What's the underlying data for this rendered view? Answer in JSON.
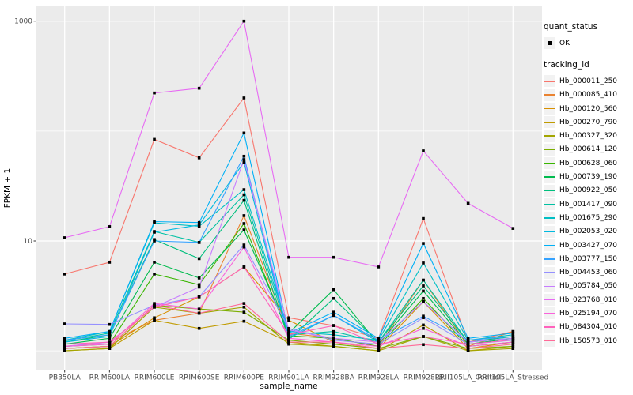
{
  "figure_colors": {
    "panel_background": "#EBEBEB",
    "gridline": "#FFFFFF",
    "axis_text": "#4D4D4D",
    "tick_mark": "#333333",
    "legend_key_background": "#F2F2F2",
    "point_marker": "#000000"
  },
  "legend": {
    "shape_title": "quant_status",
    "shape_items": [
      {
        "label": "OK",
        "marker": "black-square"
      }
    ],
    "color_title": "tracking_id"
  },
  "chart_data": {
    "type": "line",
    "title": "",
    "x_axis": {
      "label": "sample_name",
      "categories": [
        "PB350LA",
        "RRIM600LA",
        "RRIM600LE",
        "RRIM600SE",
        "RRIM600PE",
        "RRIM901LA",
        "RRIM928BA",
        "RRIM928LA",
        "RRIM928LE",
        "RRII105LA_Control",
        "RRII105LA_Stressed"
      ]
    },
    "y_axis": {
      "label": "FPKM + 1",
      "scale": "log10",
      "tick_labels": [
        "1000",
        "10"
      ],
      "tick_values": [
        1000,
        10
      ],
      "minor_gridline_values": [
        100,
        1
      ],
      "range": [
        0.95,
        1150
      ],
      "grid": true
    },
    "legend_position": "right",
    "point_marker": {
      "legend_title": "quant_status",
      "status": "OK",
      "shape": "filled-square",
      "color": "#000000"
    },
    "series": [
      {
        "name": "Hb_000011_250",
        "color": "#F8766D",
        "values": [
          5.0,
          6.4,
          84,
          57,
          200,
          2.0,
          1.7,
          1.3,
          16,
          1.2,
          1.5
        ]
      },
      {
        "name": "Hb_000085_410",
        "color": "#EA8331",
        "values": [
          1.1,
          1.2,
          1.9,
          2.2,
          17,
          1.45,
          1.3,
          1.1,
          4.4,
          1.1,
          1.5
        ]
      },
      {
        "name": "Hb_000120_560",
        "color": "#D89000",
        "values": [
          1.05,
          1.1,
          2.0,
          3.1,
          5.8,
          1.9,
          1.2,
          1.05,
          2.8,
          1.05,
          1.2
        ]
      },
      {
        "name": "Hb_000270_790",
        "color": "#C09B00",
        "values": [
          1.0,
          1.05,
          1.9,
          1.6,
          1.86,
          1.2,
          1.1,
          1.0,
          1.72,
          1.0,
          1.1
        ]
      },
      {
        "name": "Hb_000327_320",
        "color": "#A3A500",
        "values": [
          1.0,
          1.05,
          2.5,
          2.2,
          2.5,
          1.15,
          1.1,
          1.0,
          1.35,
          1.0,
          1.05
        ]
      },
      {
        "name": "Hb_000614_120",
        "color": "#7CAE00",
        "values": [
          1.05,
          1.1,
          2.6,
          2.4,
          2.25,
          1.25,
          1.15,
          1.05,
          1.35,
          1.05,
          1.1
        ]
      },
      {
        "name": "Hb_000628_060",
        "color": "#39B600",
        "values": [
          1.1,
          1.15,
          5.0,
          4.0,
          14.4,
          1.37,
          1.3,
          1.1,
          3.0,
          1.1,
          1.2
        ]
      },
      {
        "name": "Hb_000739_190",
        "color": "#00BB4E",
        "values": [
          1.15,
          1.3,
          6.4,
          4.6,
          12.6,
          1.45,
          3.6,
          1.15,
          3.5,
          1.15,
          1.3
        ]
      },
      {
        "name": "Hb_000922_050",
        "color": "#00BF7D",
        "values": [
          1.2,
          1.4,
          10.3,
          6.9,
          23.4,
          1.26,
          3.0,
          1.2,
          3.9,
          1.2,
          1.35
        ]
      },
      {
        "name": "Hb_001417_090",
        "color": "#00C1A3",
        "values": [
          1.23,
          1.45,
          12.2,
          9.7,
          26.3,
          1.4,
          1.5,
          1.2,
          4.4,
          1.2,
          1.3
        ]
      },
      {
        "name": "Hb_001675_290",
        "color": "#00BFC4",
        "values": [
          1.25,
          1.5,
          14.6,
          13.6,
          29.3,
          1.5,
          1.4,
          1.25,
          6.3,
          1.25,
          1.4
        ]
      },
      {
        "name": "Hb_002053_020",
        "color": "#00BAE0",
        "values": [
          1.2,
          1.35,
          12.0,
          14.0,
          52,
          1.3,
          2.1,
          1.2,
          2.8,
          1.2,
          1.3
        ]
      },
      {
        "name": "Hb_003427_070",
        "color": "#00B0F6",
        "values": [
          1.3,
          1.5,
          15.0,
          14.7,
          96,
          1.45,
          2.25,
          1.3,
          9.5,
          1.3,
          1.45
        ]
      },
      {
        "name": "Hb_003777_150",
        "color": "#35A2FF",
        "values": [
          1.25,
          1.4,
          10.0,
          9.7,
          59,
          1.35,
          2.1,
          1.25,
          2.07,
          1.25,
          1.35
        ]
      },
      {
        "name": "Hb_004453_060",
        "color": "#9590FF",
        "values": [
          1.76,
          1.74,
          2.6,
          3.1,
          9.2,
          1.6,
          1.25,
          1.15,
          2.0,
          1.15,
          1.25
        ]
      },
      {
        "name": "Hb_005784_050",
        "color": "#C77CFF",
        "values": [
          1.1,
          1.2,
          2.5,
          3.8,
          55,
          1.55,
          1.3,
          1.2,
          2.8,
          1.2,
          1.3
        ]
      },
      {
        "name": "Hb_023768_010",
        "color": "#E76BF3",
        "values": [
          10.7,
          13.5,
          222,
          245,
          1000,
          7.1,
          7.1,
          5.8,
          66,
          22,
          13
        ]
      },
      {
        "name": "Hb_025194_070",
        "color": "#FA62DB",
        "values": [
          1.1,
          1.15,
          2.7,
          2.4,
          8.8,
          1.3,
          1.2,
          1.1,
          1.6,
          1.1,
          1.2
        ]
      },
      {
        "name": "Hb_084304_010",
        "color": "#FF62BC",
        "values": [
          1.15,
          1.2,
          2.5,
          3.1,
          5.8,
          1.4,
          1.7,
          1.15,
          1.35,
          1.15,
          1.26
        ]
      },
      {
        "name": "Hb_150573_010",
        "color": "#FF6A98",
        "values": [
          1.05,
          1.1,
          2.6,
          2.2,
          2.7,
          1.2,
          1.2,
          1.05,
          1.14,
          1.05,
          1.15
        ]
      }
    ]
  }
}
